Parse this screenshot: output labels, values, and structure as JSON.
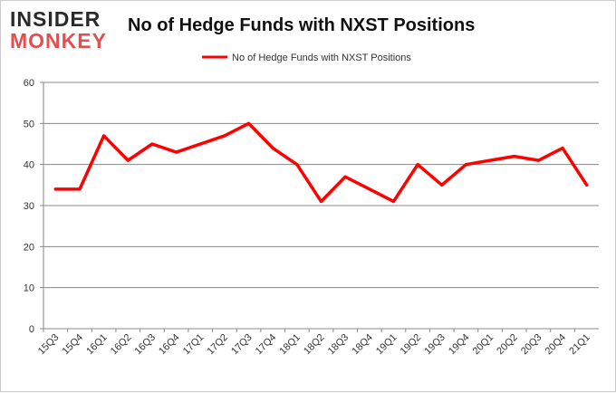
{
  "logo": {
    "line1": "INSIDER",
    "line2": "MONKEY"
  },
  "chart_data": {
    "type": "line",
    "title": "No of Hedge Funds with NXST Positions",
    "xlabel": "",
    "ylabel": "",
    "categories": [
      "15Q3",
      "15Q4",
      "16Q1",
      "16Q2",
      "16Q3",
      "16Q4",
      "17Q1",
      "17Q2",
      "17Q3",
      "17Q4",
      "18Q1",
      "18Q2",
      "18Q3",
      "18Q4",
      "19Q1",
      "19Q2",
      "19Q3",
      "19Q4",
      "20Q1",
      "20Q2",
      "20Q3",
      "20Q4",
      "21Q1"
    ],
    "series": [
      {
        "name": "No of Hedge Funds with NXST Positions",
        "color": "#ff0000",
        "values": [
          34,
          34,
          47,
          41,
          45,
          43,
          45,
          47,
          50,
          44,
          40,
          31,
          37,
          34,
          31,
          40,
          35,
          40,
          41,
          42,
          41,
          44,
          35
        ]
      }
    ],
    "ylim": [
      0,
      60
    ],
    "yticks": [
      0,
      10,
      20,
      30,
      40,
      50,
      60
    ],
    "grid": true,
    "legend": "top-center"
  }
}
